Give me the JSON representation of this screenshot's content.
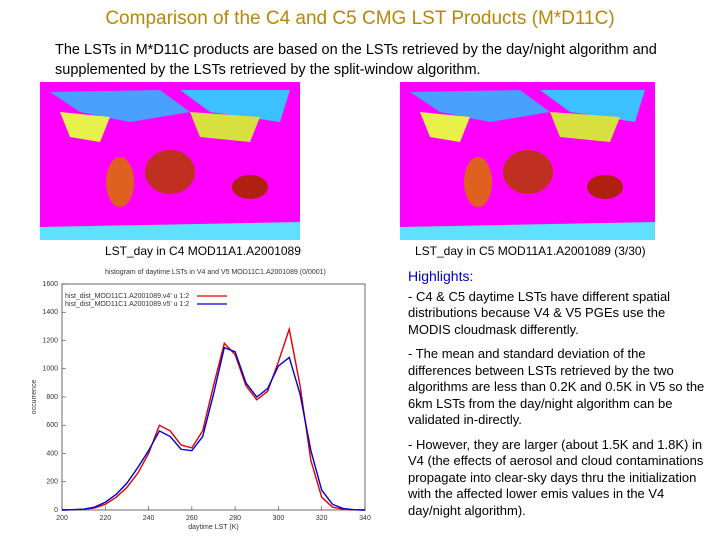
{
  "header": {
    "title": "Comparison of the C4 and C5 CMG LST Products (M*D11C)"
  },
  "intro": "The LSTs in M*D11C products are based on the LSTs retrieved by the day/night algorithm and supplemented by the LSTs retrieved by the split-window algorithm.",
  "maps": [
    {
      "caption": "LST_day in C4 MOD11A1.A2001089"
    },
    {
      "caption": "LST_day in C5 MOD11A1.A2001089 (3/30)"
    }
  ],
  "chart_data": {
    "type": "line",
    "title": "histogram of daytime LSTs in V4 and V5 MOD11C1.A2001089 (0/0001)",
    "x_label": "daytime LST (K)",
    "y_label": "occurrence",
    "x": [
      200,
      205,
      210,
      215,
      220,
      225,
      230,
      235,
      240,
      245,
      250,
      255,
      260,
      265,
      270,
      275,
      280,
      285,
      290,
      295,
      300,
      305,
      310,
      315,
      320,
      325,
      330,
      335,
      340
    ],
    "series": [
      {
        "name": "hist_dist_MOD11C1.A2001089.v4' u 1:2",
        "color": "#e00000",
        "values": [
          0,
          2,
          5,
          15,
          40,
          90,
          160,
          260,
          400,
          600,
          560,
          460,
          440,
          560,
          880,
          1180,
          1100,
          880,
          780,
          840,
          1050,
          1280,
          880,
          350,
          90,
          20,
          5,
          1,
          0
        ]
      },
      {
        "name": "hist_dist_MOD11C1.A2001089.v5' u 1:2",
        "color": "#0000d0",
        "values": [
          0,
          2,
          6,
          20,
          55,
          110,
          190,
          300,
          420,
          560,
          520,
          430,
          420,
          520,
          820,
          1150,
          1120,
          900,
          800,
          860,
          1020,
          1080,
          820,
          420,
          140,
          40,
          10,
          2,
          0
        ]
      }
    ],
    "xlim": [
      200,
      340
    ],
    "ylim": [
      0,
      1600
    ],
    "xticks": [
      200,
      220,
      240,
      260,
      280,
      300,
      320,
      340
    ],
    "yticks": [
      0,
      200,
      400,
      600,
      800,
      1000,
      1200,
      1400,
      1600
    ],
    "legend": "upper-left"
  },
  "highlights": {
    "heading": "Highlights:",
    "items": [
      "- C4 & C5 daytime LSTs have different spatial distributions because V4 & V5 PGEs use the MODIS cloudmask differently.",
      "- The mean and standard deviation of the differences between LSTs retrieved by the two algorithms are less than 0.2K and 0.5K in V5 so the 6km LSTs from the day/night algorithm can be validated in-directly.",
      "- However, they are larger (about 1.5K and 1.8K) in V4 (the effects of aerosol and cloud contaminations propagate into clear-sky days thru the initialization with the affected lower emis values in the V4 day/night algorithm)."
    ]
  }
}
